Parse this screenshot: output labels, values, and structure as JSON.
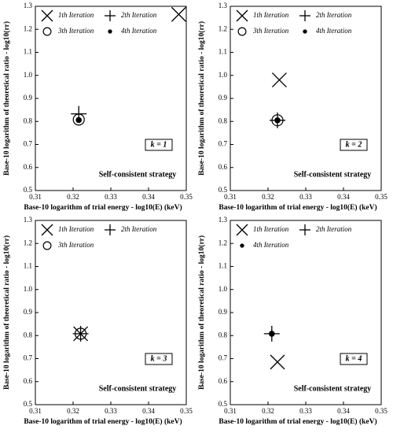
{
  "chart_data": [
    {
      "type": "scatter",
      "x_label": "Base-10 logarithm of trial energy - log10(E) (keV)",
      "y_label": "Base-10 logarithm of theoretical ratio - log10(rr)",
      "xlim": [
        0.31,
        0.35
      ],
      "xticks": [
        0.31,
        0.32,
        0.33,
        0.34,
        0.35
      ],
      "ylim": [
        0.5,
        1.3
      ],
      "yticks": [
        0.5,
        0.6,
        0.7,
        0.8,
        0.9,
        {
          "value": 1,
          "label": "1.0"
        },
        1.1,
        1.2,
        1.3
      ],
      "annotations": [
        "k = 1",
        "Self-consistent strategy"
      ],
      "series": [
        {
          "name": "1th Iteration",
          "marker": "x",
          "color": "#000000",
          "x": [
            0.348
          ],
          "values": [
            1.265
          ]
        },
        {
          "name": "2th Iteration",
          "marker": "+",
          "color": "#000000",
          "x": [
            0.3215
          ],
          "values": [
            0.833
          ]
        },
        {
          "name": "3th Iteration",
          "marker": "o",
          "color": "#000000",
          "x": [
            0.3215
          ],
          "values": [
            0.808
          ]
        },
        {
          "name": "4th Iteration",
          "marker": "dot",
          "color": "#000000",
          "x": [
            0.3215
          ],
          "values": [
            0.806
          ]
        }
      ]
    },
    {
      "type": "scatter",
      "x_label": "Base-10 logarithm of trial energy - log10(E) (keV)",
      "y_label": "Base-10 logarithm of theoretical ratio - log10(rr)",
      "xlim": [
        0.31,
        0.35
      ],
      "xticks": [
        0.31,
        0.32,
        0.33,
        0.34,
        0.35
      ],
      "ylim": [
        0.5,
        1.3
      ],
      "yticks": [
        0.5,
        0.6,
        0.7,
        0.8,
        0.9,
        {
          "value": 1,
          "label": "1.0"
        },
        1.1,
        1.2,
        1.3
      ],
      "annotations": [
        "k = 2",
        "Self-consistent strategy"
      ],
      "series": [
        {
          "name": "1th Iteration",
          "marker": "x",
          "color": "#000000",
          "x": [
            0.323
          ],
          "values": [
            0.98
          ]
        },
        {
          "name": "2th Iteration",
          "marker": "+",
          "color": "#000000",
          "x": [
            0.3225
          ],
          "values": [
            0.805
          ]
        },
        {
          "name": "3th Iteration",
          "marker": "o",
          "color": "#000000",
          "x": [
            0.3225
          ],
          "values": [
            0.805
          ]
        },
        {
          "name": "4th Iteration",
          "marker": "dot",
          "color": "#000000",
          "x": [
            0.3225
          ],
          "values": [
            0.805
          ]
        }
      ]
    },
    {
      "type": "scatter",
      "x_label": "Base-10 logarithm of trial energy - log10(E) (keV)",
      "y_label": "Base-10 logarithm of theoretical ratio - log10(rr)",
      "xlim": [
        0.31,
        0.35
      ],
      "xticks": [
        0.31,
        0.32,
        0.33,
        0.34,
        0.35
      ],
      "ylim": [
        0.5,
        1.3
      ],
      "yticks": [
        0.5,
        0.6,
        0.7,
        0.8,
        0.9,
        {
          "value": 1,
          "label": "1.0"
        },
        1.1,
        1.2,
        1.3
      ],
      "annotations": [
        "k = 3",
        "Self-consistent strategy"
      ],
      "series": [
        {
          "name": "1th Iteration",
          "marker": "x",
          "color": "#000000",
          "x": [
            0.322
          ],
          "values": [
            0.808
          ]
        },
        {
          "name": "2th Iteration",
          "marker": "+",
          "color": "#000000",
          "x": [
            0.322
          ],
          "values": [
            0.808
          ]
        },
        {
          "name": "3th Iteration",
          "marker": "o",
          "color": "#000000",
          "x": [
            0.322
          ],
          "values": [
            0.808
          ]
        }
      ]
    },
    {
      "type": "scatter",
      "x_label": "Base-10 logarithm of trial energy - log10(E) (keV)",
      "y_label": "Base-10 logarithm of theoretical ratio - log10(rr)",
      "xlim": [
        0.31,
        0.35
      ],
      "xticks": [
        0.31,
        0.32,
        0.33,
        0.34,
        0.35
      ],
      "ylim": [
        0.5,
        1.3
      ],
      "yticks": [
        0.5,
        0.6,
        0.7,
        0.8,
        0.9,
        {
          "value": 1,
          "label": "1.0"
        },
        1.1,
        1.2,
        1.3
      ],
      "annotations": [
        "k = 4",
        "Self-consistent strategy"
      ],
      "series": [
        {
          "name": "1th Iteration",
          "marker": "x",
          "color": "#000000",
          "x": [
            0.3225
          ],
          "values": [
            0.685
          ]
        },
        {
          "name": "2th Iteration",
          "marker": "+",
          "color": "#000000",
          "x": [
            0.321
          ],
          "values": [
            0.808
          ]
        },
        {
          "name": "4th Iteration",
          "marker": "dot",
          "color": "#000000",
          "x": [
            0.321
          ],
          "values": [
            0.808
          ]
        }
      ]
    }
  ]
}
